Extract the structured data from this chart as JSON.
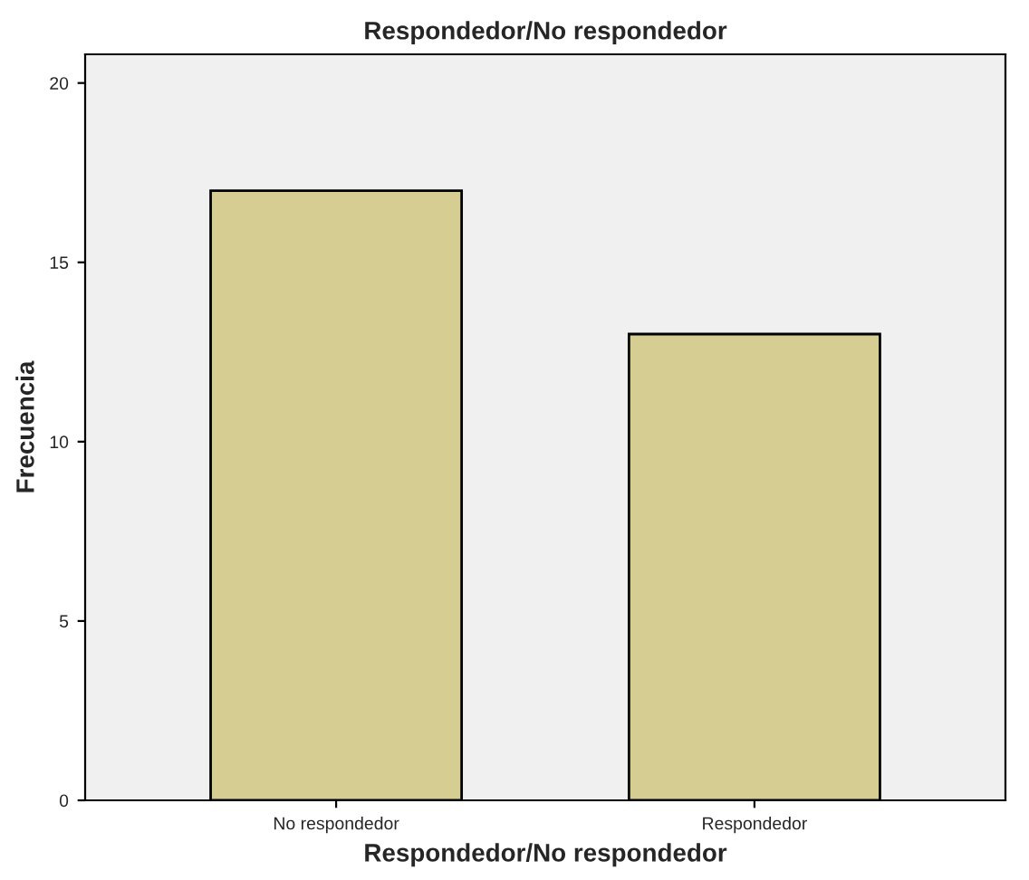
{
  "chart_data": {
    "type": "bar",
    "title": "Respondedor/No respondedor",
    "xlabel": "Respondedor/No respondedor",
    "ylabel": "Frecuencia",
    "categories": [
      "No respondedor",
      "Respondedor"
    ],
    "values": [
      17,
      13
    ],
    "color": "#d6cd92",
    "ylim": [
      0,
      20.8
    ],
    "yticks": [
      0,
      5,
      10,
      15,
      20
    ],
    "grid": false
  }
}
